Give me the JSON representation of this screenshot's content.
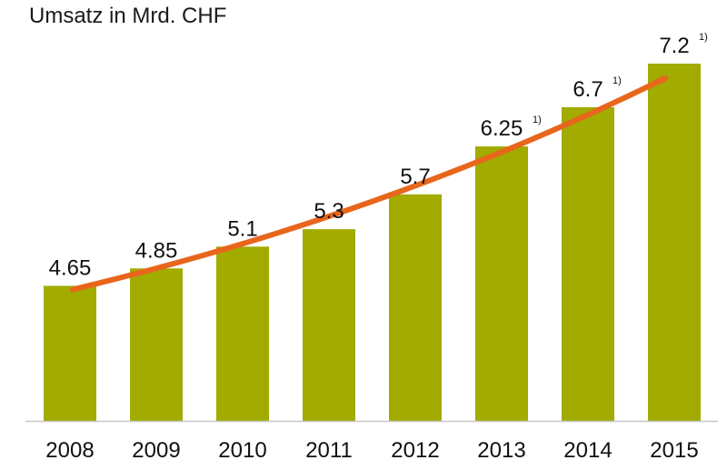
{
  "chart_data": {
    "type": "bar",
    "title": "Umsatz in Mrd. CHF",
    "categories": [
      "2008",
      "2009",
      "2010",
      "2011",
      "2012",
      "2013",
      "2014",
      "2015"
    ],
    "values": [
      4.65,
      4.85,
      5.1,
      5.3,
      5.7,
      6.25,
      6.7,
      7.2
    ],
    "value_labels": [
      "4.65",
      "4.85",
      "5.1",
      "5.3",
      "5.7",
      "6.25",
      "6.7",
      "7.2"
    ],
    "footnotes": [
      "",
      "",
      "",
      "",
      "",
      "1)",
      "1)",
      "1)"
    ],
    "ylim": [
      3.1,
      7.2
    ],
    "xlabel": "",
    "ylabel": "",
    "grid": false,
    "legend": "none",
    "annotations": [
      {
        "type": "trend-arrow",
        "from_category": "2008",
        "to_category": "2015",
        "color": "#e8661c"
      }
    ]
  },
  "colors": {
    "bar": "#a1ab00",
    "arrow": "#e8661c",
    "axis": "#c8c8c8",
    "text": "#111111"
  }
}
